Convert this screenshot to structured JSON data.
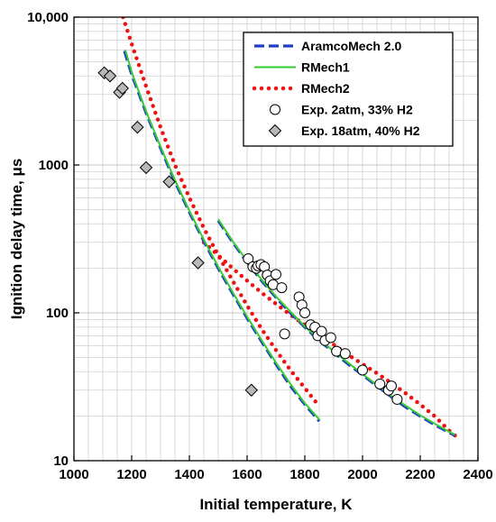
{
  "chart_data": {
    "type": "scatter",
    "title": "",
    "xlabel": "Initial temperature, K",
    "ylabel": "Ignition delay time, μs",
    "xlim": [
      1000,
      2400
    ],
    "ylim": [
      10,
      10000
    ],
    "y_scale": "log",
    "grid": true,
    "legend_position": "top-right",
    "x_ticks": [
      1000,
      1200,
      1400,
      1600,
      1800,
      2000,
      2200,
      2400
    ],
    "x_tick_labels": [
      "1000",
      "1200",
      "1400",
      "1600",
      "1800",
      "2000",
      "2200",
      "2400"
    ],
    "y_ticks": [
      10,
      100,
      1000,
      10000
    ],
    "y_tick_labels": [
      "10",
      "100",
      "1000",
      "10,000"
    ],
    "series": [
      {
        "name": "AramcoMech 2.0",
        "kind": "line",
        "style": "dashed",
        "color": "#1f3fc4",
        "segments": [
          [
            [
              1175,
              5900
            ],
            [
              1200,
              4100
            ],
            [
              1250,
              2250
            ],
            [
              1300,
              1300
            ],
            [
              1350,
              770
            ],
            [
              1400,
              480
            ],
            [
              1450,
              305
            ],
            [
              1500,
              200
            ],
            [
              1550,
              135
            ],
            [
              1600,
              92
            ],
            [
              1650,
              64
            ],
            [
              1700,
              45
            ],
            [
              1750,
              32
            ],
            [
              1800,
              24
            ],
            [
              1850,
              18.5
            ]
          ],
          [
            [
              1500,
              420
            ],
            [
              1550,
              300
            ],
            [
              1600,
              220
            ],
            [
              1650,
              165
            ],
            [
              1700,
              127
            ],
            [
              1750,
              100
            ],
            [
              1800,
              80
            ],
            [
              1850,
              65
            ],
            [
              1900,
              54
            ],
            [
              1950,
              45
            ],
            [
              2000,
              38
            ],
            [
              2050,
              32
            ],
            [
              2100,
              27
            ],
            [
              2150,
              23
            ],
            [
              2200,
              20
            ],
            [
              2250,
              17.5
            ],
            [
              2300,
              15.5
            ],
            [
              2320,
              14.8
            ]
          ]
        ]
      },
      {
        "name": "RMech1",
        "kind": "line",
        "style": "solid",
        "color": "#33cc33",
        "segments": [
          [
            [
              1178,
              6000
            ],
            [
              1200,
              4250
            ],
            [
              1250,
              2300
            ],
            [
              1300,
              1330
            ],
            [
              1350,
              790
            ],
            [
              1400,
              490
            ],
            [
              1450,
              312
            ],
            [
              1500,
              205
            ],
            [
              1550,
              138
            ],
            [
              1600,
              94
            ],
            [
              1650,
              65.5
            ],
            [
              1700,
              46
            ],
            [
              1750,
              33
            ],
            [
              1800,
              24.5
            ],
            [
              1850,
              19
            ]
          ],
          [
            [
              1500,
              430
            ],
            [
              1550,
              305
            ],
            [
              1600,
              224
            ],
            [
              1650,
              168
            ],
            [
              1700,
              129
            ],
            [
              1750,
              102
            ],
            [
              1800,
              81
            ],
            [
              1850,
              66
            ],
            [
              1900,
              55
            ],
            [
              1950,
              46
            ],
            [
              2000,
              38.5
            ],
            [
              2050,
              32.5
            ],
            [
              2100,
              27.5
            ],
            [
              2150,
              23.5
            ],
            [
              2200,
              20.3
            ],
            [
              2250,
              17.8
            ],
            [
              2300,
              15.7
            ],
            [
              2320,
              15
            ]
          ]
        ]
      },
      {
        "name": "RMech2",
        "kind": "line",
        "style": "dotted",
        "color": "#ee1111",
        "segments": [
          [
            [
              1170,
              10000
            ],
            [
              1200,
              6600
            ],
            [
              1250,
              3400
            ],
            [
              1300,
              1800
            ],
            [
              1350,
              1000
            ],
            [
              1400,
              600
            ],
            [
              1450,
              375
            ],
            [
              1500,
              245
            ],
            [
              1550,
              165
            ],
            [
              1600,
              112
            ],
            [
              1650,
              78
            ],
            [
              1700,
              56
            ],
            [
              1750,
              41
            ],
            [
              1800,
              31
            ],
            [
              1845,
              24
            ]
          ],
          [
            [
              1450,
              300
            ],
            [
              1500,
              245
            ],
            [
              1550,
              200
            ],
            [
              1600,
              165
            ],
            [
              1650,
              137
            ],
            [
              1700,
              115
            ],
            [
              1750,
              97
            ],
            [
              1800,
              83
            ],
            [
              1850,
              71
            ],
            [
              1900,
              61
            ],
            [
              1950,
              52
            ],
            [
              2000,
              45
            ],
            [
              2050,
              39
            ],
            [
              2100,
              33.5
            ],
            [
              2150,
              28.5
            ],
            [
              2200,
              24
            ],
            [
              2250,
              20
            ],
            [
              2300,
              16
            ],
            [
              2335,
              14
            ]
          ]
        ]
      },
      {
        "name": "Exp. 2atm, 33% H2",
        "kind": "scatter",
        "marker": "circle",
        "fill": "#ffffff",
        "stroke": "#000000",
        "points": [
          [
            1604,
            232
          ],
          [
            1620,
            205
          ],
          [
            1632,
            200
          ],
          [
            1638,
            208
          ],
          [
            1648,
            212
          ],
          [
            1660,
            205
          ],
          [
            1670,
            180
          ],
          [
            1680,
            165
          ],
          [
            1690,
            155
          ],
          [
            1700,
            182
          ],
          [
            1720,
            148
          ],
          [
            1730,
            72
          ],
          [
            1780,
            128
          ],
          [
            1790,
            113
          ],
          [
            1800,
            100
          ],
          [
            1820,
            83
          ],
          [
            1835,
            80
          ],
          [
            1845,
            70
          ],
          [
            1858,
            75
          ],
          [
            1870,
            65
          ],
          [
            1890,
            68
          ],
          [
            1910,
            55
          ],
          [
            1940,
            53
          ],
          [
            2000,
            41
          ],
          [
            2060,
            33
          ],
          [
            2090,
            30
          ],
          [
            2100,
            32
          ],
          [
            2120,
            26
          ]
        ]
      },
      {
        "name": "Exp. 18atm, 40% H2",
        "kind": "scatter",
        "marker": "diamond",
        "fill": "#b8b8b8",
        "stroke": "#000000",
        "points": [
          [
            1105,
            4200
          ],
          [
            1125,
            4000
          ],
          [
            1158,
            3100
          ],
          [
            1168,
            3300
          ],
          [
            1220,
            1800
          ],
          [
            1250,
            960
          ],
          [
            1330,
            770
          ],
          [
            1430,
            218
          ],
          [
            1615,
            30
          ]
        ]
      }
    ]
  }
}
